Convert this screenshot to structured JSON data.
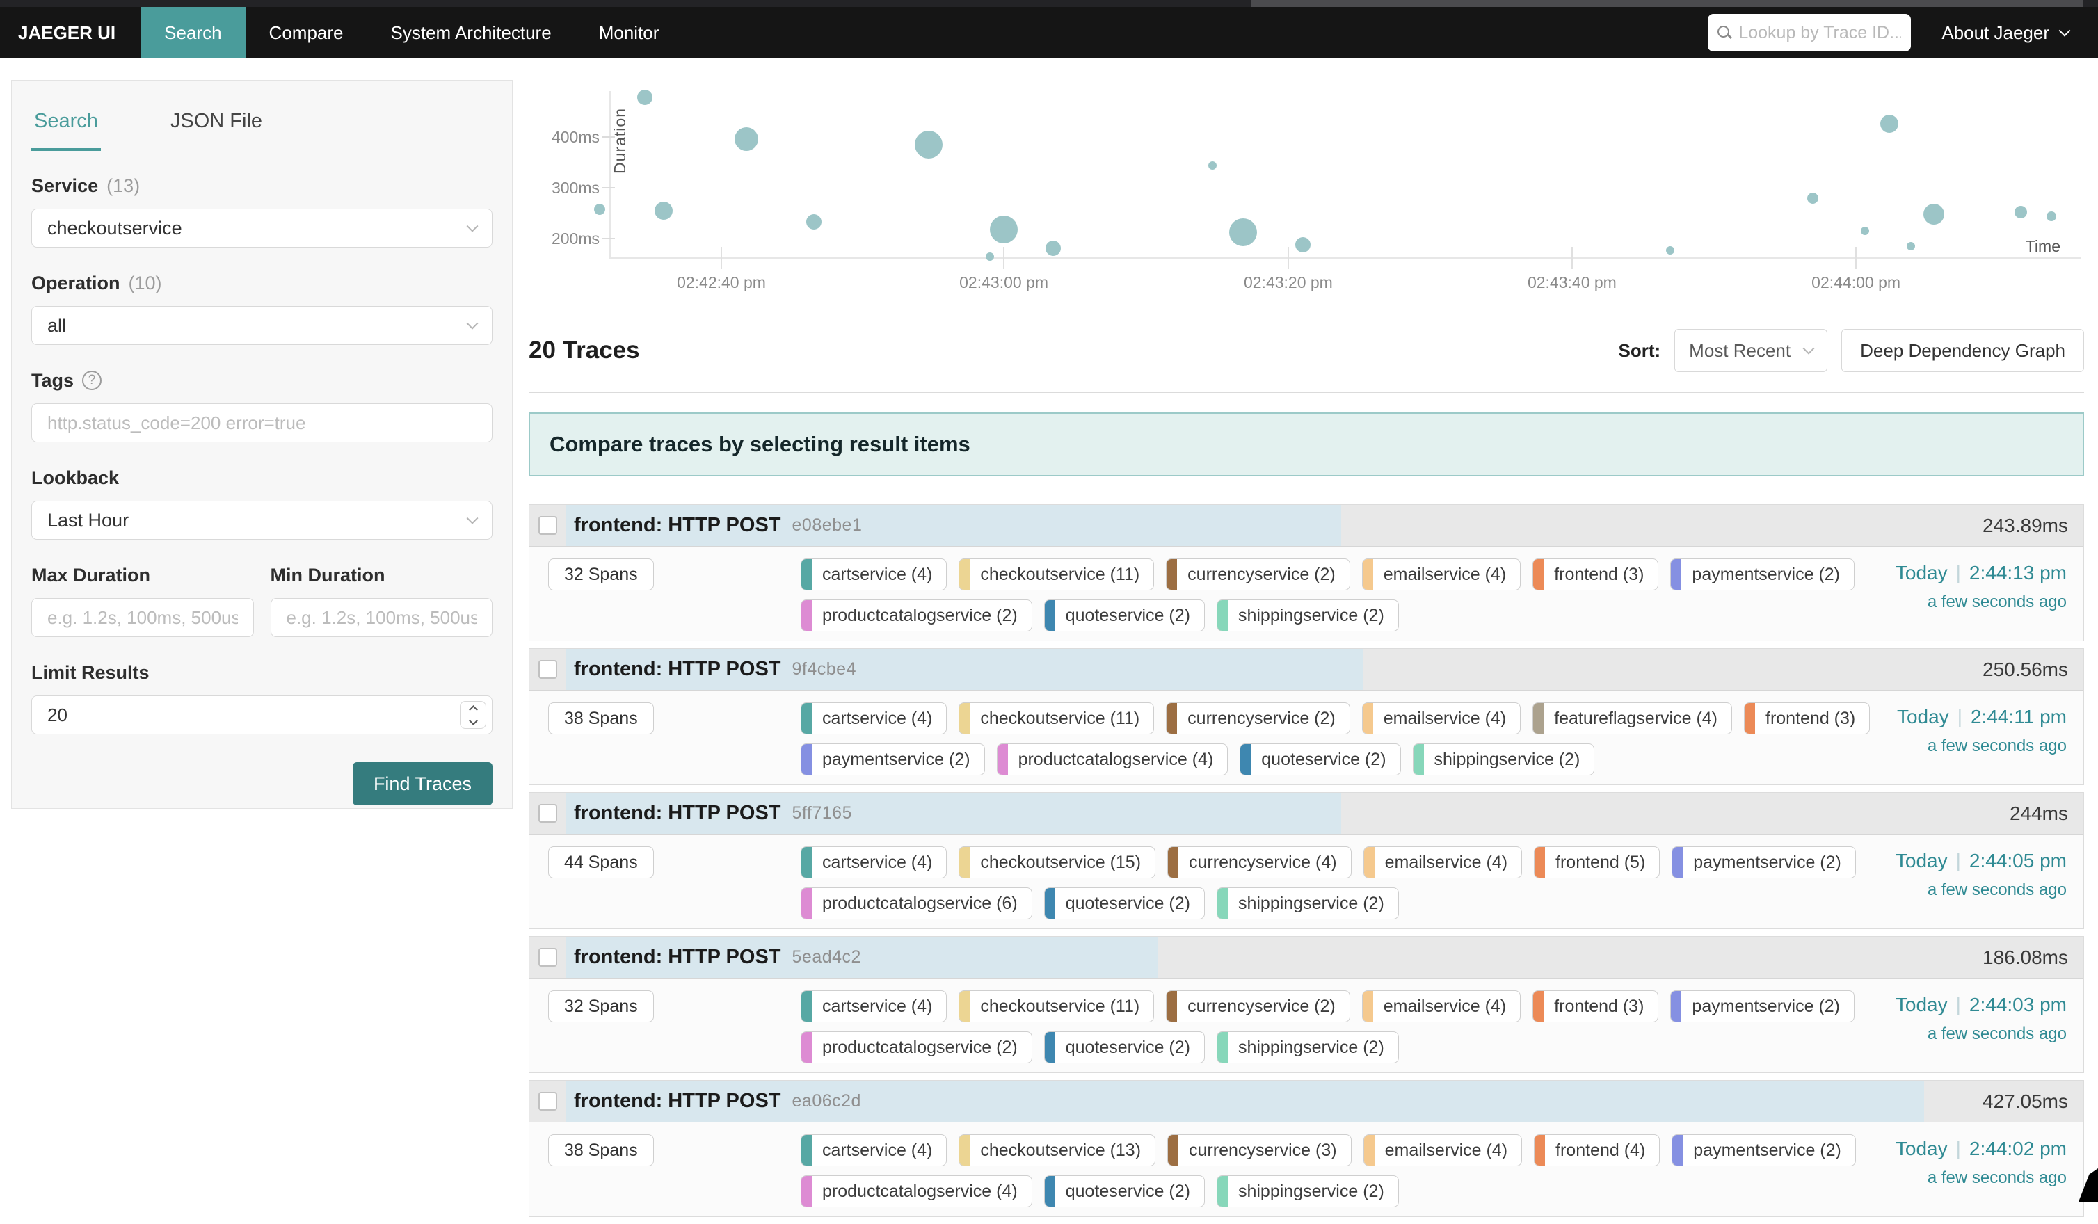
{
  "colors": {
    "nav_bg": "#151515",
    "accent": "#4a9c9b",
    "button_teal": "#357c7e",
    "link_teal": "#2f8a93",
    "banner_bg": "#e3f1ef",
    "banner_border": "#9ccac8",
    "bar_fill": "#d8e7ee",
    "dot": "#9cc5c7"
  },
  "nav": {
    "brand": "JAEGER UI",
    "items": [
      {
        "label": "Search",
        "active": true
      },
      {
        "label": "Compare",
        "active": false
      },
      {
        "label": "System Architecture",
        "active": false
      },
      {
        "label": "Monitor",
        "active": false
      }
    ],
    "lookup_placeholder": "Lookup by Trace ID...",
    "about_label": "About Jaeger"
  },
  "sidebar": {
    "tabs": [
      {
        "label": "Search",
        "active": true
      },
      {
        "label": "JSON File",
        "active": false
      }
    ],
    "service": {
      "label": "Service",
      "count": "(13)",
      "value": "checkoutservice"
    },
    "operation": {
      "label": "Operation",
      "count": "(10)",
      "value": "all"
    },
    "tags": {
      "label": "Tags",
      "placeholder": "http.status_code=200 error=true"
    },
    "lookback": {
      "label": "Lookback",
      "value": "Last Hour"
    },
    "max_duration": {
      "label": "Max Duration",
      "placeholder": "e.g. 1.2s, 100ms, 500us"
    },
    "min_duration": {
      "label": "Min Duration",
      "placeholder": "e.g. 1.2s, 100ms, 500us"
    },
    "limit": {
      "label": "Limit Results",
      "value": "20"
    },
    "find_button": "Find Traces"
  },
  "results": {
    "count_title": "20 Traces",
    "sort_label": "Sort:",
    "sort_value": "Most Recent",
    "ddg_button": "Deep Dependency Graph",
    "banner": "Compare traces by selecting result items"
  },
  "chart_data": {
    "type": "scatter",
    "xlabel": "Time",
    "ylabel": "Duration",
    "y_ticks": [
      {
        "label": "400ms",
        "ms": 400
      },
      {
        "label": "300ms",
        "ms": 300
      },
      {
        "label": "200ms",
        "ms": 200
      }
    ],
    "x_ticks": [
      {
        "label": "02:42:40 pm",
        "pct": 7.66
      },
      {
        "label": "02:43:00 pm",
        "pct": 26.86
      },
      {
        "label": "02:43:20 pm",
        "pct": 46.19
      },
      {
        "label": "02:43:40 pm",
        "pct": 65.48
      },
      {
        "label": "02:44:00 pm",
        "pct": 84.78
      }
    ],
    "y_range_ms": [
      161,
      492
    ],
    "points": [
      {
        "pct": -0.61,
        "ms": 258,
        "r": 8
      },
      {
        "pct": 2.45,
        "ms": 478,
        "r": 11
      },
      {
        "pct": 3.73,
        "ms": 255,
        "r": 13
      },
      {
        "pct": 9.36,
        "ms": 396,
        "r": 17
      },
      {
        "pct": 13.95,
        "ms": 234,
        "r": 11
      },
      {
        "pct": 21.75,
        "ms": 385,
        "r": 20
      },
      {
        "pct": 25.91,
        "ms": 165,
        "r": 6
      },
      {
        "pct": 26.86,
        "ms": 218,
        "r": 20
      },
      {
        "pct": 30.21,
        "ms": 181,
        "r": 11
      },
      {
        "pct": 41.04,
        "ms": 344,
        "r": 6
      },
      {
        "pct": 43.12,
        "ms": 213,
        "r": 20
      },
      {
        "pct": 47.19,
        "ms": 188,
        "r": 11
      },
      {
        "pct": 72.15,
        "ms": 177,
        "r": 6
      },
      {
        "pct": 81.84,
        "ms": 280,
        "r": 8
      },
      {
        "pct": 85.39,
        "ms": 216,
        "r": 6
      },
      {
        "pct": 87.04,
        "ms": 427,
        "r": 13
      },
      {
        "pct": 88.51,
        "ms": 186,
        "r": 6
      },
      {
        "pct": 90.07,
        "ms": 248,
        "r": 15
      },
      {
        "pct": 95.98,
        "ms": 253,
        "r": 9
      },
      {
        "pct": 98.06,
        "ms": 245,
        "r": 7
      }
    ]
  },
  "service_colors": {
    "cartservice": "#57a8a4",
    "checkoutservice": "#ecd593",
    "currencyservice": "#9c6e42",
    "emailservice": "#f5c98e",
    "featureflagservice": "#aca28e",
    "frontend": "#ec8a57",
    "paymentservice": "#8590e2",
    "productcatalogservice": "#dd8bd3",
    "quoteservice": "#3e87b0",
    "shippingservice": "#87d7ba"
  },
  "traces": [
    {
      "title": "frontend: HTTP POST",
      "id": "e08ebe1",
      "duration": "243.89ms",
      "bar_pct": 51.1,
      "spans": "32 Spans",
      "date": "Today",
      "time": "2:44:13 pm",
      "ago": "a few seconds ago",
      "services": [
        {
          "label": "cartservice (4)",
          "key": "cartservice"
        },
        {
          "label": "checkoutservice (11)",
          "key": "checkoutservice"
        },
        {
          "label": "currencyservice (2)",
          "key": "currencyservice"
        },
        {
          "label": "emailservice (4)",
          "key": "emailservice"
        },
        {
          "label": "frontend (3)",
          "key": "frontend"
        },
        {
          "label": "paymentservice (2)",
          "key": "paymentservice"
        },
        {
          "label": "productcatalogservice (2)",
          "key": "productcatalogservice"
        },
        {
          "label": "quoteservice (2)",
          "key": "quoteservice"
        },
        {
          "label": "shippingservice (2)",
          "key": "shippingservice"
        }
      ]
    },
    {
      "title": "frontend: HTTP POST",
      "id": "9f4cbe4",
      "duration": "250.56ms",
      "bar_pct": 52.5,
      "spans": "38 Spans",
      "date": "Today",
      "time": "2:44:11 pm",
      "ago": "a few seconds ago",
      "services": [
        {
          "label": "cartservice (4)",
          "key": "cartservice"
        },
        {
          "label": "checkoutservice (11)",
          "key": "checkoutservice"
        },
        {
          "label": "currencyservice (2)",
          "key": "currencyservice"
        },
        {
          "label": "emailservice (4)",
          "key": "emailservice"
        },
        {
          "label": "featureflagservice (4)",
          "key": "featureflagservice"
        },
        {
          "label": "frontend (3)",
          "key": "frontend"
        },
        {
          "label": "paymentservice (2)",
          "key": "paymentservice"
        },
        {
          "label": "productcatalogservice (4)",
          "key": "productcatalogservice"
        },
        {
          "label": "quoteservice (2)",
          "key": "quoteservice"
        },
        {
          "label": "shippingservice (2)",
          "key": "shippingservice"
        }
      ]
    },
    {
      "title": "frontend: HTTP POST",
      "id": "5ff7165",
      "duration": "244ms",
      "bar_pct": 51.1,
      "spans": "44 Spans",
      "date": "Today",
      "time": "2:44:05 pm",
      "ago": "a few seconds ago",
      "services": [
        {
          "label": "cartservice (4)",
          "key": "cartservice"
        },
        {
          "label": "checkoutservice (15)",
          "key": "checkoutservice"
        },
        {
          "label": "currencyservice (4)",
          "key": "currencyservice"
        },
        {
          "label": "emailservice (4)",
          "key": "emailservice"
        },
        {
          "label": "frontend (5)",
          "key": "frontend"
        },
        {
          "label": "paymentservice (2)",
          "key": "paymentservice"
        },
        {
          "label": "productcatalogservice (6)",
          "key": "productcatalogservice"
        },
        {
          "label": "quoteservice (2)",
          "key": "quoteservice"
        },
        {
          "label": "shippingservice (2)",
          "key": "shippingservice"
        }
      ]
    },
    {
      "title": "frontend: HTTP POST",
      "id": "5ead4c2",
      "duration": "186.08ms",
      "bar_pct": 39.0,
      "spans": "32 Spans",
      "date": "Today",
      "time": "2:44:03 pm",
      "ago": "a few seconds ago",
      "services": [
        {
          "label": "cartservice (4)",
          "key": "cartservice"
        },
        {
          "label": "checkoutservice (11)",
          "key": "checkoutservice"
        },
        {
          "label": "currencyservice (2)",
          "key": "currencyservice"
        },
        {
          "label": "emailservice (4)",
          "key": "emailservice"
        },
        {
          "label": "frontend (3)",
          "key": "frontend"
        },
        {
          "label": "paymentservice (2)",
          "key": "paymentservice"
        },
        {
          "label": "productcatalogservice (2)",
          "key": "productcatalogservice"
        },
        {
          "label": "quoteservice (2)",
          "key": "quoteservice"
        },
        {
          "label": "shippingservice (2)",
          "key": "shippingservice"
        }
      ]
    },
    {
      "title": "frontend: HTTP POST",
      "id": "ea06c2d",
      "duration": "427.05ms",
      "bar_pct": 89.5,
      "spans": "38 Spans",
      "date": "Today",
      "time": "2:44:02 pm",
      "ago": "a few seconds ago",
      "services": [
        {
          "label": "cartservice (4)",
          "key": "cartservice"
        },
        {
          "label": "checkoutservice (13)",
          "key": "checkoutservice"
        },
        {
          "label": "currencyservice (3)",
          "key": "currencyservice"
        },
        {
          "label": "emailservice (4)",
          "key": "emailservice"
        },
        {
          "label": "frontend (4)",
          "key": "frontend"
        },
        {
          "label": "paymentservice (2)",
          "key": "paymentservice"
        },
        {
          "label": "productcatalogservice (4)",
          "key": "productcatalogservice"
        },
        {
          "label": "quoteservice (2)",
          "key": "quoteservice"
        },
        {
          "label": "shippingservice (2)",
          "key": "shippingservice"
        }
      ]
    }
  ]
}
